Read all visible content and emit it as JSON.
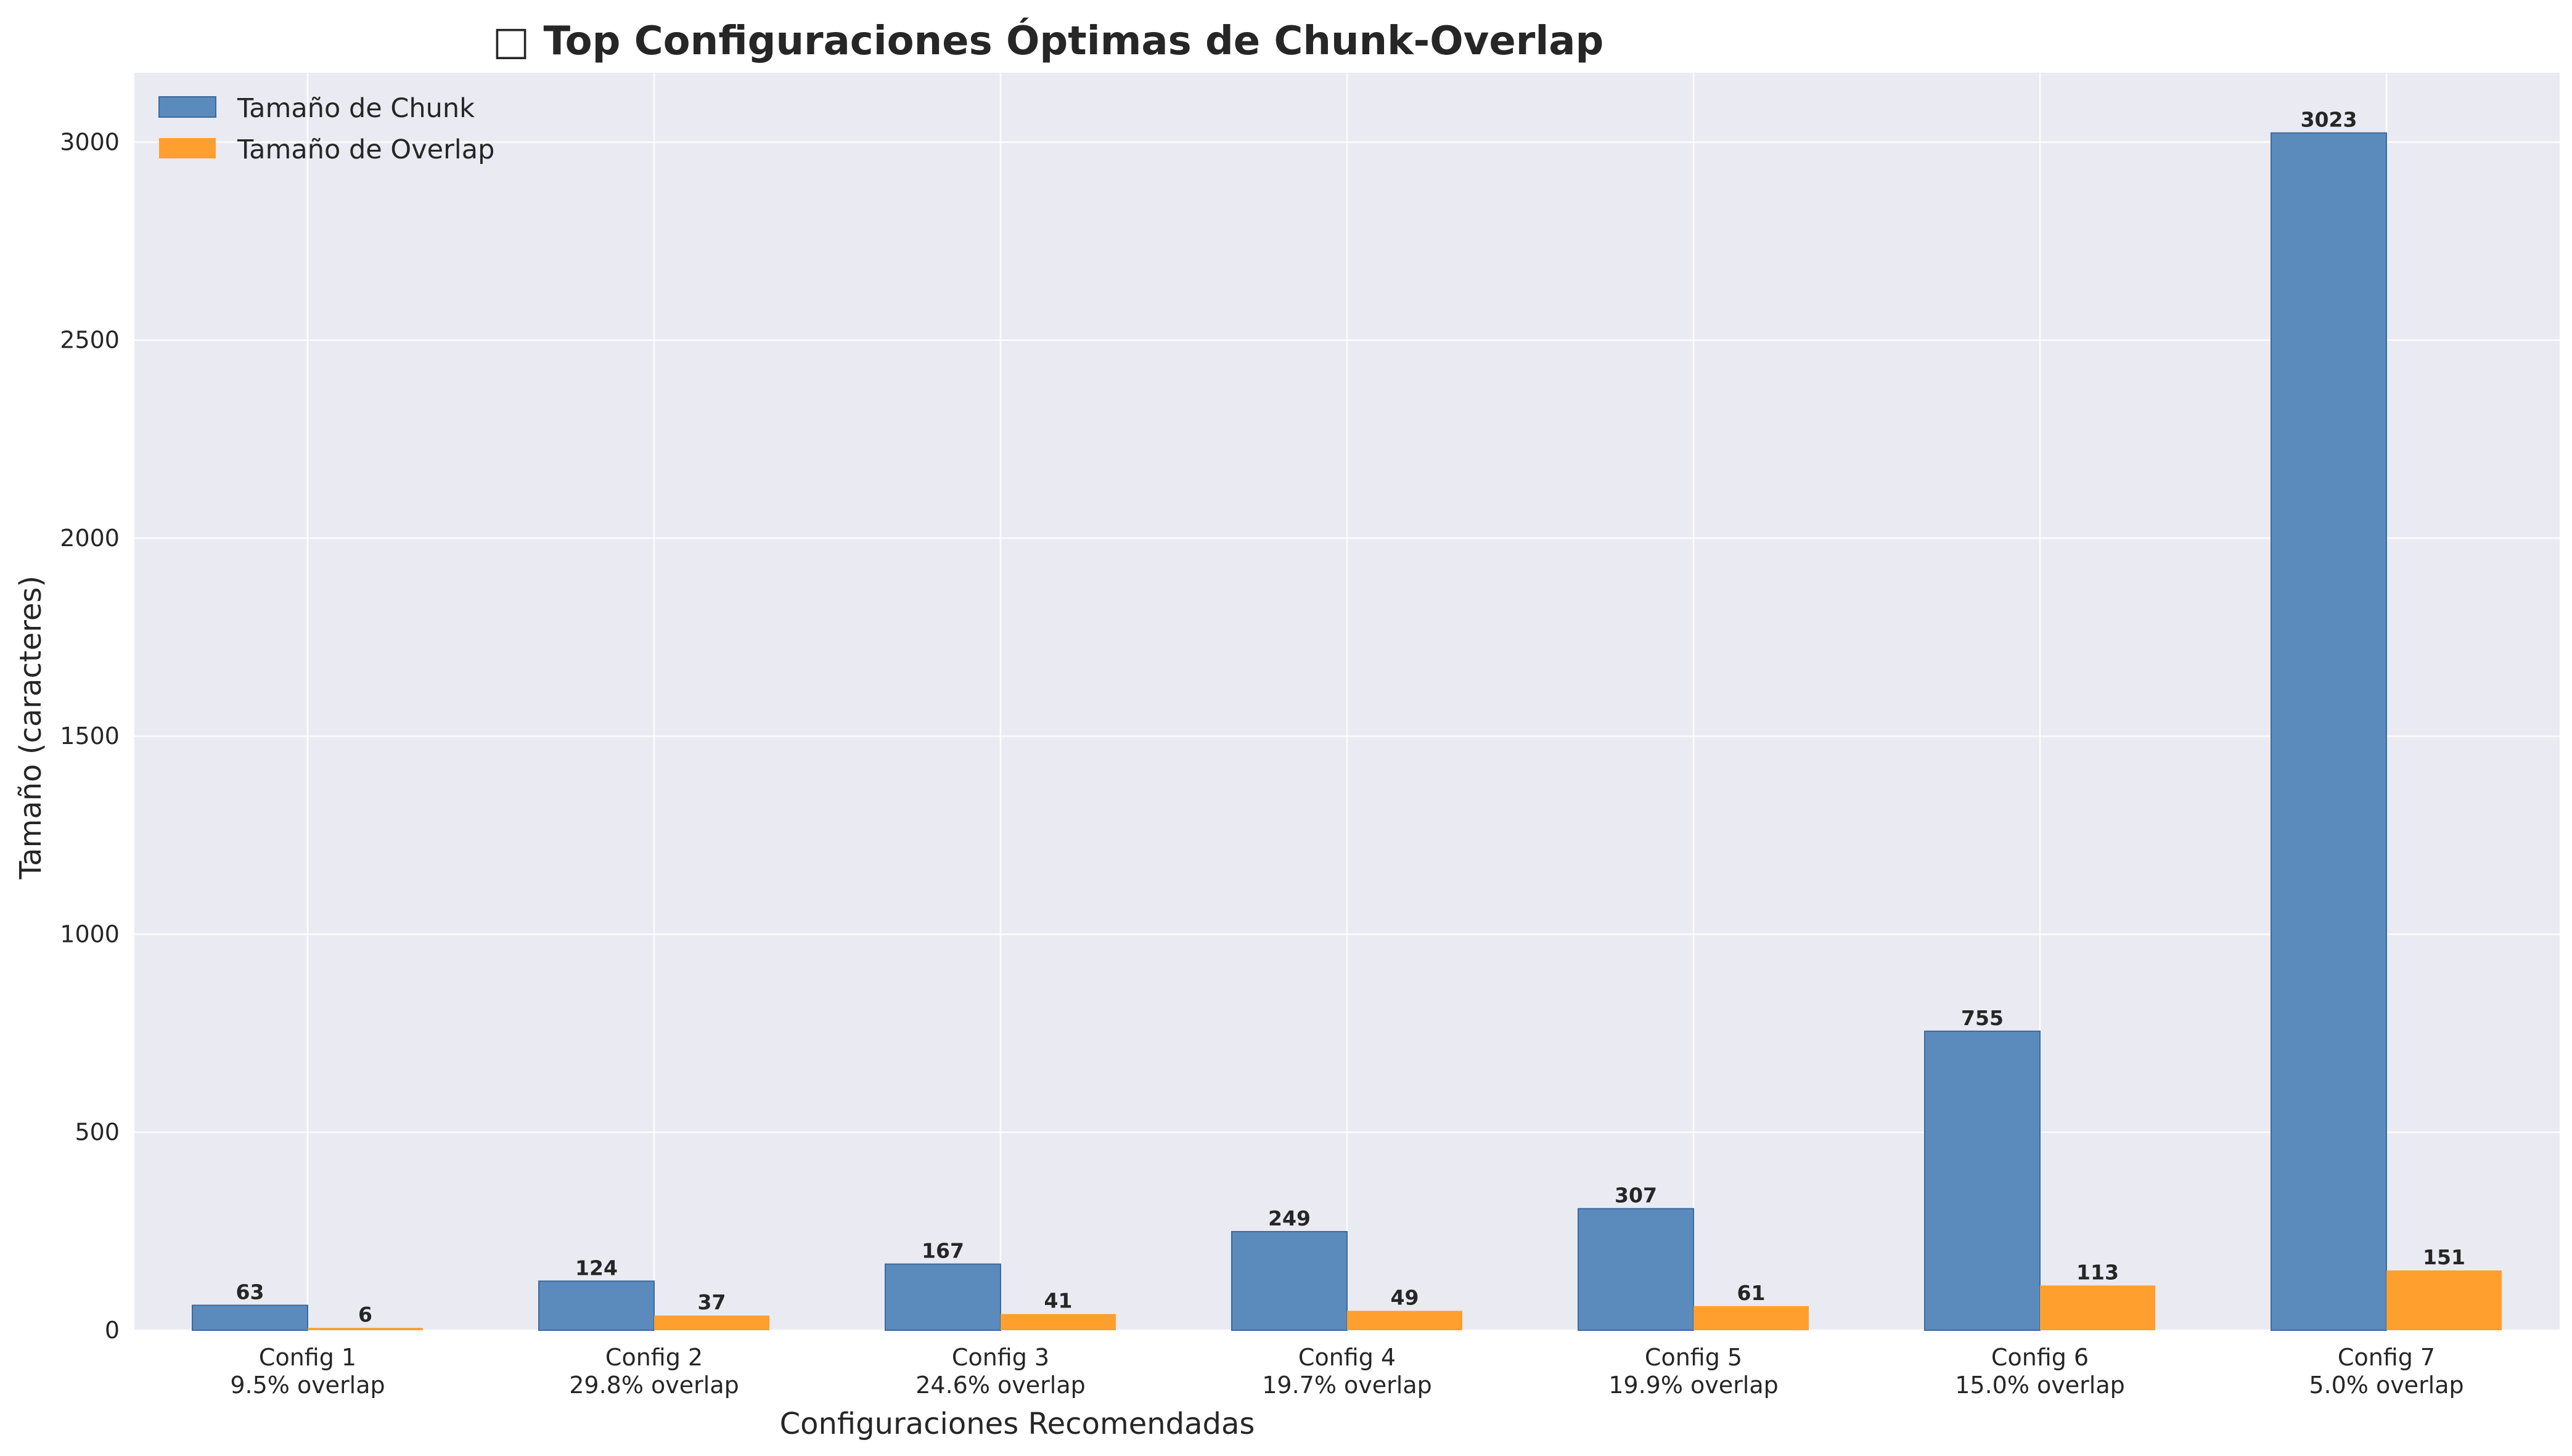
{
  "chart_data": {
    "type": "bar",
    "title": "□ Top Configuraciones Óptimas de Chunk-Overlap",
    "xlabel": "Configuraciones Recomendadas",
    "ylabel": "Tamaño (caracteres)",
    "categories": [
      "Config 1",
      "Config 2",
      "Config 3",
      "Config 4",
      "Config 5",
      "Config 6",
      "Config 7"
    ],
    "subcategories": [
      "9.5% overlap",
      "29.8% overlap",
      "24.6% overlap",
      "19.7% overlap",
      "19.9% overlap",
      "15.0% overlap",
      "5.0% overlap"
    ],
    "series": [
      {
        "name": "Tamaño de Chunk",
        "color": "#5b8bbd",
        "values": [
          63,
          124,
          167,
          249,
          307,
          755,
          3023
        ]
      },
      {
        "name": "Tamaño de Overlap",
        "color": "#ff9f2e",
        "values": [
          6,
          37,
          41,
          49,
          61,
          113,
          151
        ]
      }
    ],
    "ylim": [
      0,
      3175
    ],
    "yticks": [
      0,
      500,
      1000,
      1500,
      2000,
      2500,
      3000
    ],
    "grid": true,
    "legend_position": "top-left",
    "background": "#eaeaf2"
  }
}
